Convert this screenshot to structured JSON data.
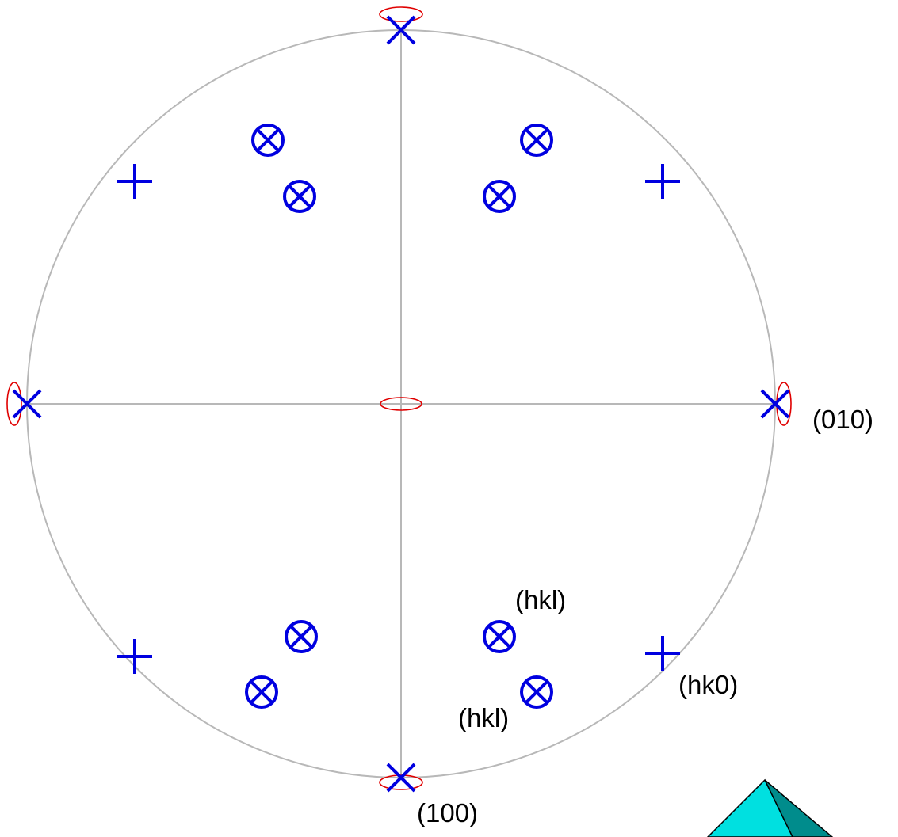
{
  "labels": [
    "(010)",
    "(hkl)",
    "(hk0)",
    "(hkl)",
    "(100)"
  ]
}
